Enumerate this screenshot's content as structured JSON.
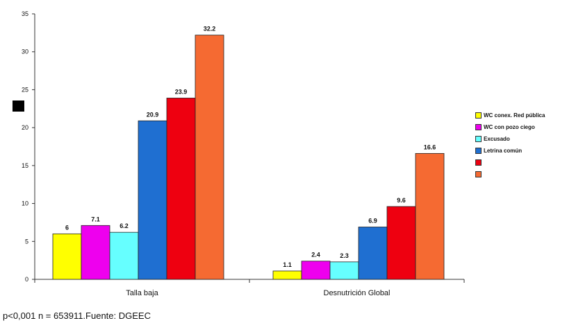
{
  "chart_data": {
    "type": "bar",
    "categories": [
      "Talla baja",
      "Desnutrición Global"
    ],
    "series": [
      {
        "name": "WC conex. Red pública",
        "color": "#ffff00",
        "values": [
          6,
          1.1
        ]
      },
      {
        "name": "WC con pozo ciego",
        "color": "#ee00ee",
        "values": [
          7.1,
          2.4
        ]
      },
      {
        "name": "Excusado",
        "color": "#66ffff",
        "values": [
          6.2,
          2.3
        ]
      },
      {
        "name": "Letrina común",
        "color": "#1f6fd1",
        "values": [
          20.9,
          6.9
        ]
      },
      {
        "name": "",
        "color": "#ee0010",
        "values": [
          23.9,
          9.6
        ]
      },
      {
        "name": "",
        "color": "#f56a32",
        "values": [
          32.2,
          16.6
        ]
      }
    ],
    "ylim": [
      0,
      35
    ],
    "yticks": [
      0,
      5,
      10,
      15,
      20,
      25,
      30,
      35
    ],
    "data_labels": [
      [
        "6",
        "1.1"
      ],
      [
        "7.1",
        "2.4"
      ],
      [
        "6.2",
        "2.3"
      ],
      [
        "20.9",
        "6.9"
      ],
      [
        "23.9",
        "9.6"
      ],
      [
        "32.2",
        "16.6"
      ]
    ],
    "legend_position": "right",
    "grid": false
  },
  "footnote": "p<0,001 n = 653911.Fuente: DGEEC"
}
